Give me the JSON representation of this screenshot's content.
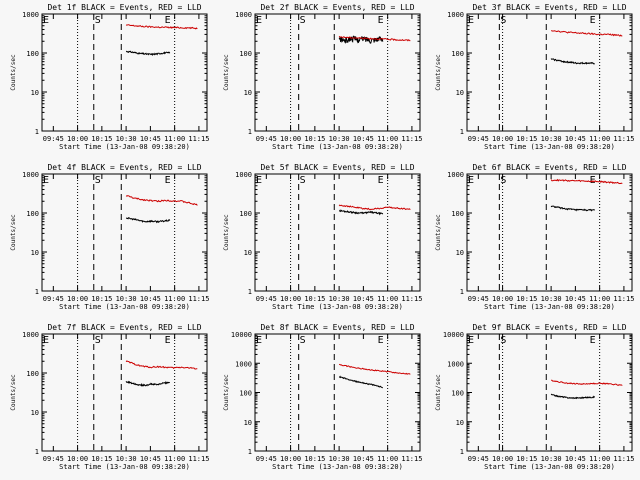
{
  "figure": {
    "x_tick_labels": [
      "09:45",
      "10:00",
      "10:15",
      "10:30",
      "10:45",
      "11:00",
      "11:15"
    ],
    "xlabel": "Start Time (13-Jan-08 09:38:20)",
    "ylabel": "Counts/sec",
    "marker_labels": {
      "start": "S",
      "end": "E",
      "left": "E"
    },
    "colors": {
      "events": "#000000",
      "lld": "#cc0000",
      "background": "#f7f7f7"
    }
  },
  "chart_data": [
    {
      "type": "line",
      "title": "Det 1f BLACK = Events, RED = LLD",
      "ylim": [
        1,
        1000
      ],
      "yticks": [
        "1",
        "10",
        "100",
        "1000"
      ],
      "log_y": true,
      "xlim": [
        "09:38",
        "11:20"
      ],
      "markers": {
        "dotted": [
          "10:00",
          "11:00"
        ],
        "dashed": [
          "10:10",
          "10:27"
        ]
      },
      "series": [
        {
          "name": "Events",
          "color": "#000000",
          "x_range": [
            "10:30",
            "10:57"
          ],
          "values": [
            110,
            105,
            98,
            95,
            92,
            95,
            100,
            102
          ]
        },
        {
          "name": "LLD",
          "color": "#cc0000",
          "x_range": [
            "10:30",
            "11:14"
          ],
          "values": [
            520,
            500,
            480,
            470,
            460,
            455,
            450,
            445,
            440,
            430
          ]
        }
      ]
    },
    {
      "type": "line",
      "title": "Det 2f BLACK = Events, RED = LLD",
      "ylim": [
        1,
        1000
      ],
      "yticks": [
        "1",
        "10",
        "100",
        "1000"
      ],
      "log_y": true,
      "xlim": [
        "09:38",
        "11:20"
      ],
      "markers": {
        "dotted": [
          "10:00",
          "11:00"
        ],
        "dashed": [
          "10:05",
          "10:27"
        ]
      },
      "series": [
        {
          "name": "Events",
          "color": "#000000",
          "x_range": [
            "10:30",
            "10:57"
          ],
          "values": [
            230,
            210,
            240,
            220,
            235,
            215,
            230,
            225
          ],
          "noisy": true
        },
        {
          "name": "LLD",
          "color": "#cc0000",
          "x_range": [
            "10:30",
            "11:14"
          ],
          "values": [
            260,
            250,
            245,
            240,
            235,
            230,
            225,
            220,
            215,
            210
          ]
        }
      ]
    },
    {
      "type": "line",
      "title": "Det 3f BLACK = Events, RED = LLD",
      "ylim": [
        1,
        1000
      ],
      "yticks": [
        "1",
        "10",
        "100",
        "1000"
      ],
      "log_y": true,
      "xlim": [
        "09:38",
        "11:20"
      ],
      "markers": {
        "dotted": [
          "10:00",
          "11:00"
        ],
        "dashed": [
          "09:58",
          "10:27"
        ]
      },
      "series": [
        {
          "name": "Events",
          "color": "#000000",
          "x_range": [
            "10:30",
            "10:57"
          ],
          "values": [
            70,
            65,
            60,
            58,
            55,
            55,
            55,
            54
          ]
        },
        {
          "name": "LLD",
          "color": "#cc0000",
          "x_range": [
            "10:30",
            "11:14"
          ],
          "values": [
            380,
            360,
            340,
            330,
            320,
            310,
            300,
            300,
            290,
            280
          ]
        }
      ]
    },
    {
      "type": "line",
      "title": "Det 4f BLACK = Events, RED = LLD",
      "ylim": [
        1,
        1000
      ],
      "yticks": [
        "1",
        "10",
        "100",
        "1000"
      ],
      "log_y": true,
      "xlim": [
        "09:38",
        "11:20"
      ],
      "markers": {
        "dotted": [
          "10:00",
          "11:00"
        ],
        "dashed": [
          "10:10",
          "10:27"
        ]
      },
      "series": [
        {
          "name": "Events",
          "color": "#000000",
          "x_range": [
            "10:30",
            "10:57"
          ],
          "values": [
            75,
            70,
            65,
            60,
            62,
            60,
            62,
            65
          ]
        },
        {
          "name": "LLD",
          "color": "#cc0000",
          "x_range": [
            "10:30",
            "11:14"
          ],
          "values": [
            280,
            240,
            220,
            210,
            200,
            210,
            205,
            200,
            180,
            160
          ]
        }
      ]
    },
    {
      "type": "line",
      "title": "Det 5f BLACK = Events, RED = LLD",
      "ylim": [
        1,
        1000
      ],
      "yticks": [
        "1",
        "10",
        "100",
        "1000"
      ],
      "log_y": true,
      "xlim": [
        "09:38",
        "11:20"
      ],
      "markers": {
        "dotted": [
          "10:00",
          "11:00"
        ],
        "dashed": [
          "10:05",
          "10:27"
        ]
      },
      "series": [
        {
          "name": "Events",
          "color": "#000000",
          "x_range": [
            "10:30",
            "10:57"
          ],
          "values": [
            115,
            110,
            105,
            100,
            100,
            105,
            100,
            95
          ]
        },
        {
          "name": "LLD",
          "color": "#cc0000",
          "x_range": [
            "10:30",
            "11:14"
          ],
          "values": [
            160,
            150,
            140,
            130,
            125,
            130,
            140,
            135,
            130,
            125
          ]
        }
      ]
    },
    {
      "type": "line",
      "title": "Det 6f BLACK = Events, RED = LLD",
      "ylim": [
        1,
        1000
      ],
      "yticks": [
        "1",
        "10",
        "100",
        "1000"
      ],
      "log_y": true,
      "xlim": [
        "09:38",
        "11:20"
      ],
      "markers": {
        "dotted": [
          "10:00",
          "11:00"
        ],
        "dashed": [
          "09:58",
          "10:27"
        ]
      },
      "series": [
        {
          "name": "Events",
          "color": "#000000",
          "x_range": [
            "10:30",
            "10:57"
          ],
          "values": [
            150,
            140,
            130,
            125,
            120,
            120,
            118,
            120
          ]
        },
        {
          "name": "LLD",
          "color": "#cc0000",
          "x_range": [
            "10:30",
            "11:14"
          ],
          "values": [
            700,
            690,
            680,
            670,
            660,
            650,
            640,
            620,
            600,
            580
          ]
        }
      ]
    },
    {
      "type": "line",
      "title": "Det 7f BLACK = Events, RED = LLD",
      "ylim": [
        1,
        1000
      ],
      "yticks": [
        "1",
        "10",
        "100",
        "1000"
      ],
      "log_y": true,
      "xlim": [
        "09:38",
        "11:20"
      ],
      "markers": {
        "dotted": [
          "10:00",
          "11:00"
        ],
        "dashed": [
          "10:10",
          "10:27"
        ]
      },
      "series": [
        {
          "name": "Events",
          "color": "#000000",
          "x_range": [
            "10:30",
            "10:57"
          ],
          "values": [
            60,
            55,
            50,
            48,
            52,
            50,
            55,
            58
          ]
        },
        {
          "name": "LLD",
          "color": "#cc0000",
          "x_range": [
            "10:30",
            "11:14"
          ],
          "values": [
            200,
            170,
            150,
            140,
            145,
            140,
            135,
            140,
            135,
            130
          ]
        }
      ]
    },
    {
      "type": "line",
      "title": "Det 8f BLACK = Events, RED = LLD",
      "ylim": [
        1,
        10000
      ],
      "yticks": [
        "1",
        "10",
        "100",
        "1000",
        "10000"
      ],
      "log_y": true,
      "xlim": [
        "09:38",
        "11:20"
      ],
      "markers": {
        "dotted": [
          "10:00",
          "11:00"
        ],
        "dashed": [
          "10:05",
          "10:27"
        ]
      },
      "series": [
        {
          "name": "Events",
          "color": "#000000",
          "x_range": [
            "10:30",
            "10:57"
          ],
          "values": [
            350,
            300,
            260,
            230,
            210,
            190,
            170,
            150
          ]
        },
        {
          "name": "LLD",
          "color": "#cc0000",
          "x_range": [
            "10:30",
            "11:14"
          ],
          "values": [
            900,
            800,
            700,
            650,
            600,
            550,
            520,
            480,
            450,
            420
          ]
        }
      ]
    },
    {
      "type": "line",
      "title": "Det 9f BLACK = Events, RED = LLD",
      "ylim": [
        1,
        10000
      ],
      "yticks": [
        "1",
        "10",
        "100",
        "1000",
        "10000"
      ],
      "log_y": true,
      "xlim": [
        "09:38",
        "11:20"
      ],
      "markers": {
        "dotted": [
          "10:00",
          "11:00"
        ],
        "dashed": [
          "09:58",
          "10:27"
        ]
      },
      "series": [
        {
          "name": "Events",
          "color": "#000000",
          "x_range": [
            "10:30",
            "10:57"
          ],
          "values": [
            85,
            75,
            70,
            65,
            65,
            66,
            68,
            70
          ]
        },
        {
          "name": "LLD",
          "color": "#cc0000",
          "x_range": [
            "10:30",
            "11:14"
          ],
          "values": [
            260,
            230,
            210,
            200,
            195,
            200,
            205,
            200,
            190,
            175
          ]
        }
      ]
    }
  ]
}
